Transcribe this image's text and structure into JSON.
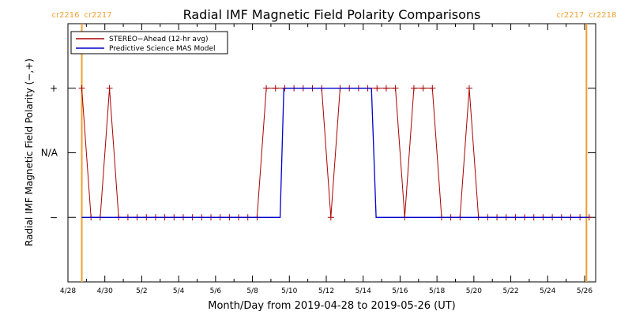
{
  "chart_data": {
    "type": "line",
    "title": "Radial IMF Magnetic Field Polarity Comparisons",
    "xlabel": "Month/Day from 2019-04-28 to 2019-05-26 (UT)",
    "ylabel": "Radial IMF Magnetic Field Polarity (−,+)",
    "x_tick_labels": [
      "4/28",
      "4/30",
      "5/2",
      "5/4",
      "5/6",
      "5/8",
      "5/10",
      "5/12",
      "5/14",
      "5/16",
      "5/18",
      "5/20",
      "5/22",
      "5/24",
      "5/26"
    ],
    "x_tick_days": [
      0,
      2,
      4,
      6,
      8,
      10,
      12,
      14,
      16,
      18,
      20,
      22,
      24,
      26,
      28
    ],
    "x_range_days": [
      0,
      28.6
    ],
    "y_categories": [
      "+",
      "N/A",
      "−"
    ],
    "y_values": [
      1,
      0,
      -1
    ],
    "y_range": [
      -2,
      2
    ],
    "grid": false,
    "legend_position": "top-left",
    "carrington_markers": [
      {
        "left_label": "cr2216",
        "right_label": "cr2217",
        "day": 0.75,
        "color": "#f0a030"
      },
      {
        "left_label": "cr2217",
        "right_label": "cr2218",
        "day": 28.1,
        "color": "#f0a030"
      }
    ],
    "series": [
      {
        "name": "STEREO−Ahead (12-hr avg)",
        "color": "#aa0000",
        "marker": "+",
        "x": [
          0.75,
          1.25,
          1.75,
          2.25,
          2.75,
          3.25,
          3.75,
          4.25,
          4.75,
          5.25,
          5.75,
          6.25,
          6.75,
          7.25,
          7.75,
          8.25,
          8.75,
          9.25,
          9.75,
          10.25,
          10.75,
          11.25,
          11.75,
          12.25,
          12.75,
          13.25,
          13.75,
          14.25,
          14.75,
          15.25,
          15.75,
          16.25,
          16.75,
          17.25,
          17.75,
          18.25,
          18.75,
          19.25,
          19.75,
          20.25,
          20.75,
          21.25,
          21.75,
          22.25,
          22.75,
          23.25,
          23.75,
          24.25,
          24.75,
          25.25,
          25.75,
          26.25,
          26.75,
          27.25,
          27.75,
          28.25
        ],
        "y": [
          1,
          -1,
          -1,
          1,
          -1,
          -1,
          -1,
          -1,
          -1,
          -1,
          -1,
          -1,
          -1,
          -1,
          -1,
          -1,
          -1,
          -1,
          -1,
          -1,
          1,
          1,
          1,
          1,
          1,
          1,
          1,
          -1,
          1,
          1,
          1,
          1,
          1,
          1,
          1,
          -1,
          1,
          1,
          1,
          -1,
          -1,
          -1,
          1,
          -1,
          -1,
          -1,
          -1,
          -1,
          -1,
          -1,
          -1,
          -1,
          -1,
          -1,
          -1,
          -1
        ]
      },
      {
        "name": "Predictive Science MAS Model",
        "color": "#0000cc",
        "step_x": [
          0.75,
          11.5,
          11.7,
          16.45,
          16.7,
          28.25
        ],
        "step_y": [
          -1,
          -1,
          1,
          1,
          -1,
          -1
        ]
      }
    ]
  }
}
